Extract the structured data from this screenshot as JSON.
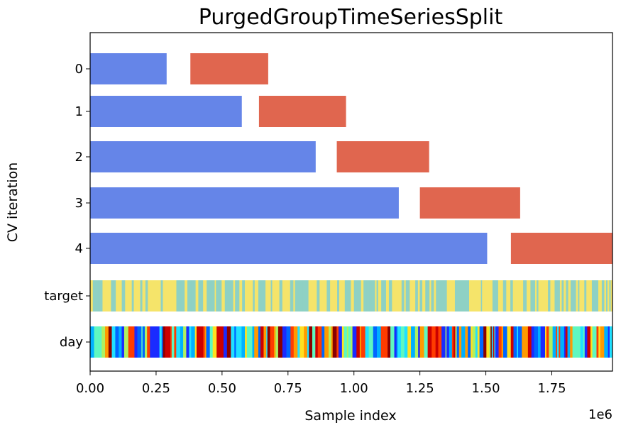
{
  "chart_data": {
    "type": "bar",
    "orientation": "horizontal",
    "title": "PurgedGroupTimeSeriesSplit",
    "xlabel": "Sample index",
    "ylabel": "CV iteration",
    "x_offset_label": "1e6",
    "xlim": [
      0,
      1.98
    ],
    "x_unit_multiplier": 1000000,
    "x_ticks": [
      0.0,
      0.25,
      0.5,
      0.75,
      1.0,
      1.25,
      1.5,
      1.75
    ],
    "x_tick_labels": [
      "0.00",
      "0.25",
      "0.50",
      "0.75",
      "1.00",
      "1.25",
      "1.50",
      "1.75"
    ],
    "rows": [
      "0",
      "1",
      "2",
      "3",
      "4",
      "target",
      "day"
    ],
    "colors": {
      "train": "#6585e8",
      "test": "#e0664f"
    },
    "cv_iterations": [
      {
        "label": "0",
        "train": [
          0.0,
          0.29
        ],
        "test": [
          0.38,
          0.675
        ]
      },
      {
        "label": "1",
        "train": [
          0.0,
          0.575
        ],
        "test": [
          0.64,
          0.97
        ]
      },
      {
        "label": "2",
        "train": [
          0.0,
          0.855
        ],
        "test": [
          0.935,
          1.285
        ]
      },
      {
        "label": "3",
        "train": [
          0.0,
          1.17
        ],
        "test": [
          1.25,
          1.63
        ]
      },
      {
        "label": "4",
        "train": [
          0.0,
          1.505
        ],
        "test": [
          1.595,
          1.98
        ]
      }
    ],
    "target_row": {
      "label": "target",
      "colors": [
        "#f5e46a",
        "#8ed1c4"
      ]
    },
    "day_row": {
      "label": "day",
      "colors": [
        "#1a2bff",
        "#0066ff",
        "#00b0ff",
        "#20e0ff",
        "#5ff7c0",
        "#b0f060",
        "#ffe020",
        "#ff9a00",
        "#ff3c00",
        "#cc0000",
        "#8a0000"
      ]
    },
    "grid": false
  }
}
